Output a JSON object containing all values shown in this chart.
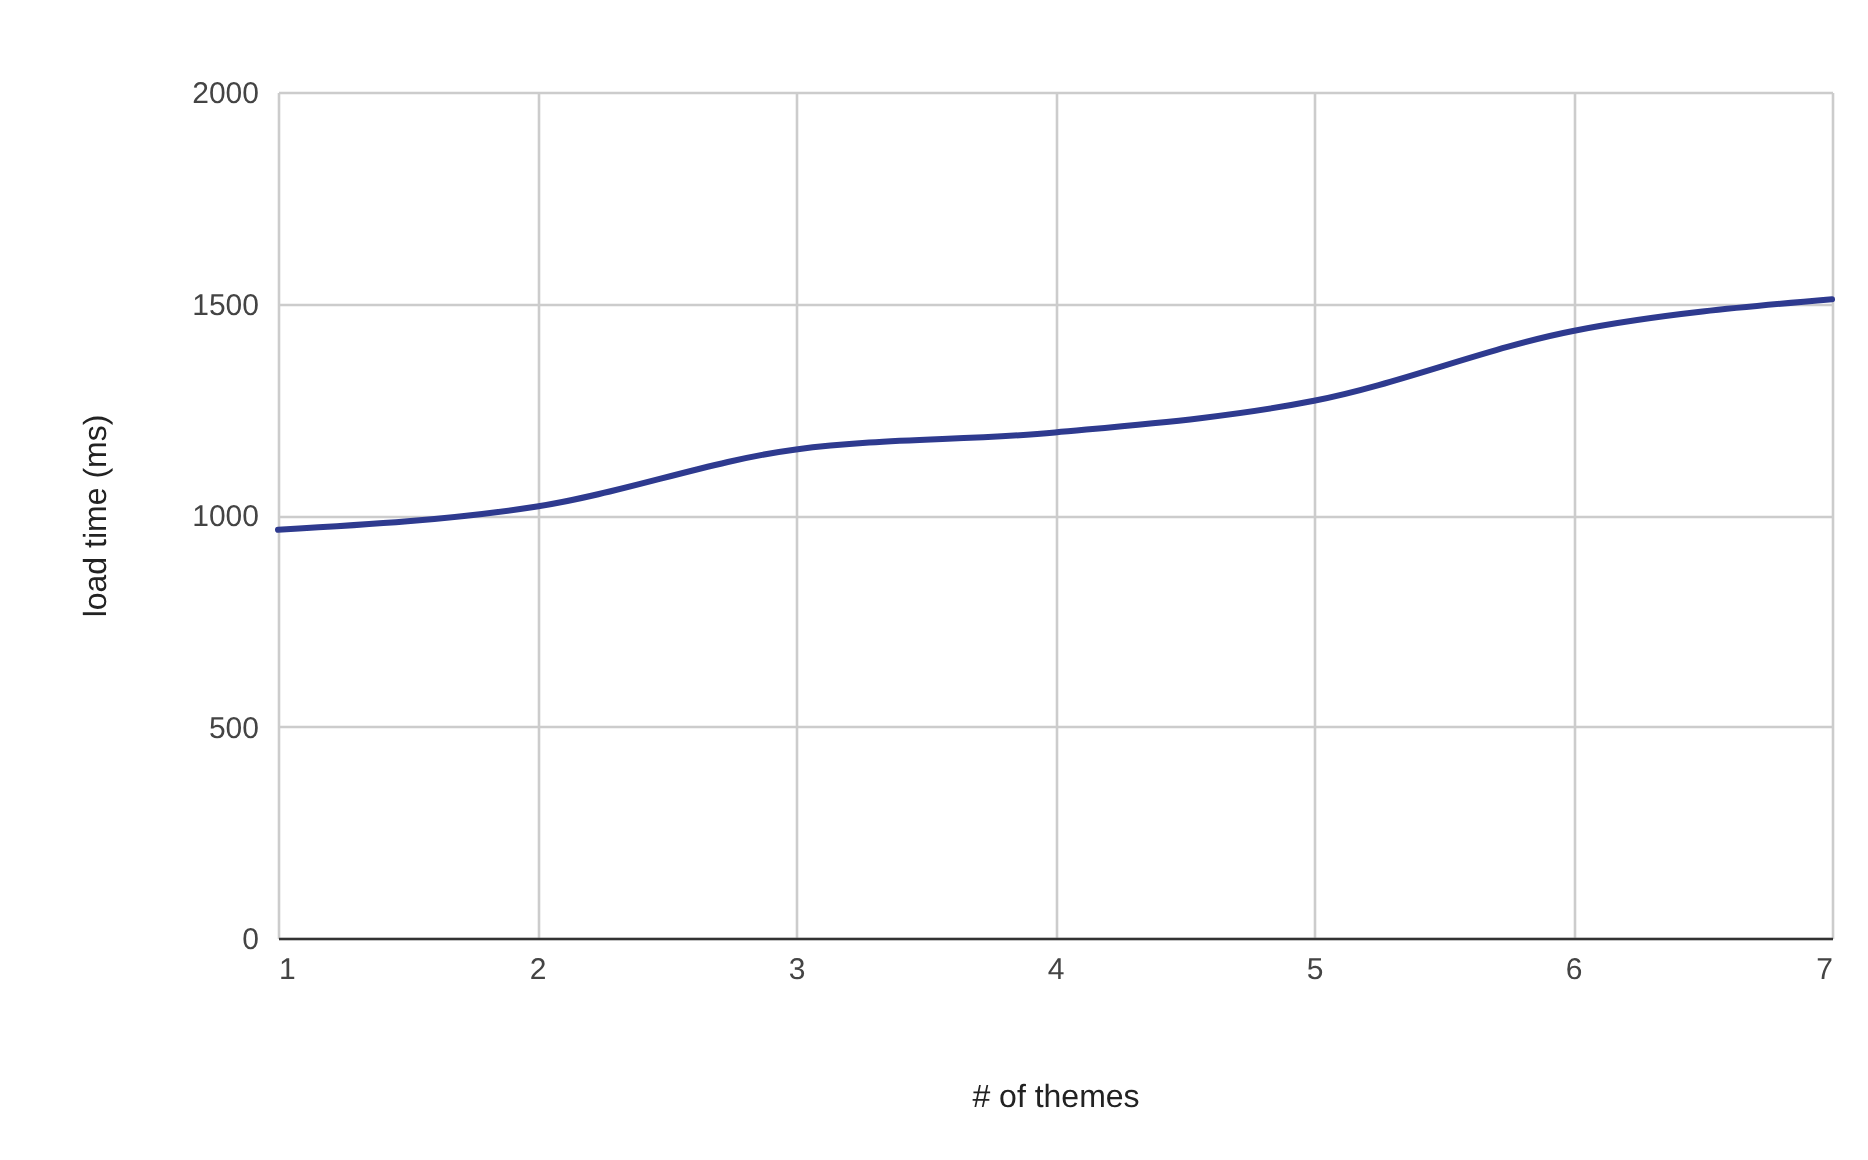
{
  "chart_data": {
    "type": "line",
    "xlabel": "# of themes",
    "ylabel": "load time (ms)",
    "x": [
      1,
      2,
      3,
      4,
      5,
      6,
      7
    ],
    "series": [
      {
        "color": "#2e3a8f",
        "values": [
          965,
          1020,
          1155,
          1195,
          1270,
          1435,
          1510
        ]
      }
    ],
    "xlim": [
      1,
      7
    ],
    "xticks": [
      1,
      2,
      3,
      4,
      5,
      6,
      7
    ],
    "ylim": [
      0,
      2000
    ],
    "yticks": [
      0,
      500,
      1000,
      1500,
      2000
    ],
    "grid": true,
    "marker": "none",
    "line_style": "solid"
  }
}
